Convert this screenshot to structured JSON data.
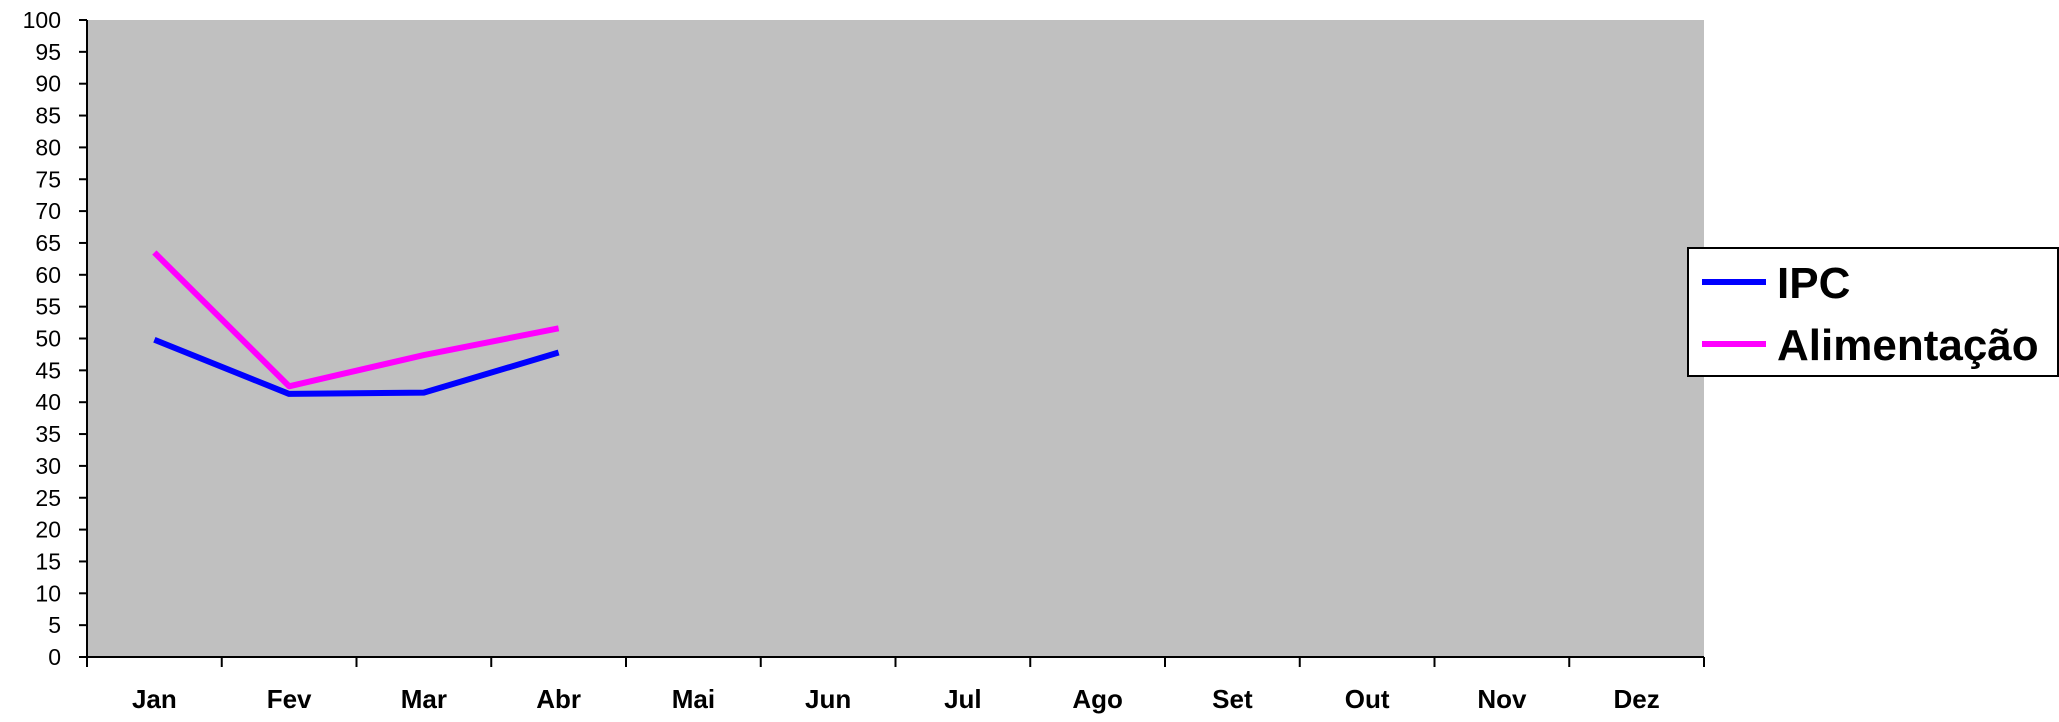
{
  "chart_data": {
    "type": "line",
    "categories": [
      "Jan",
      "Fev",
      "Mar",
      "Abr",
      "Mai",
      "Jun",
      "Jul",
      "Ago",
      "Set",
      "Out",
      "Nov",
      "Dez"
    ],
    "series": [
      {
        "name": "IPC",
        "color": "#0000ff",
        "values": [
          49.8,
          41.3,
          41.5,
          47.8,
          null,
          null,
          null,
          null,
          null,
          null,
          null,
          null
        ]
      },
      {
        "name": "Alimentação",
        "color": "#ff00ff",
        "values": [
          63.5,
          42.5,
          47.4,
          51.6,
          null,
          null,
          null,
          null,
          null,
          null,
          null,
          null
        ]
      }
    ],
    "yticks": [
      "0",
      "5",
      "10",
      "15",
      "20",
      "25",
      "30",
      "35",
      "40",
      "45",
      "50",
      "55",
      "60",
      "65",
      "70",
      "75",
      "80",
      "85",
      "90",
      "95",
      "100"
    ],
    "ylim": [
      0,
      100
    ],
    "title": "",
    "xlabel": "",
    "ylabel": "",
    "plot_background": "#c0c0c0",
    "grid": false,
    "legend_position": "right"
  }
}
